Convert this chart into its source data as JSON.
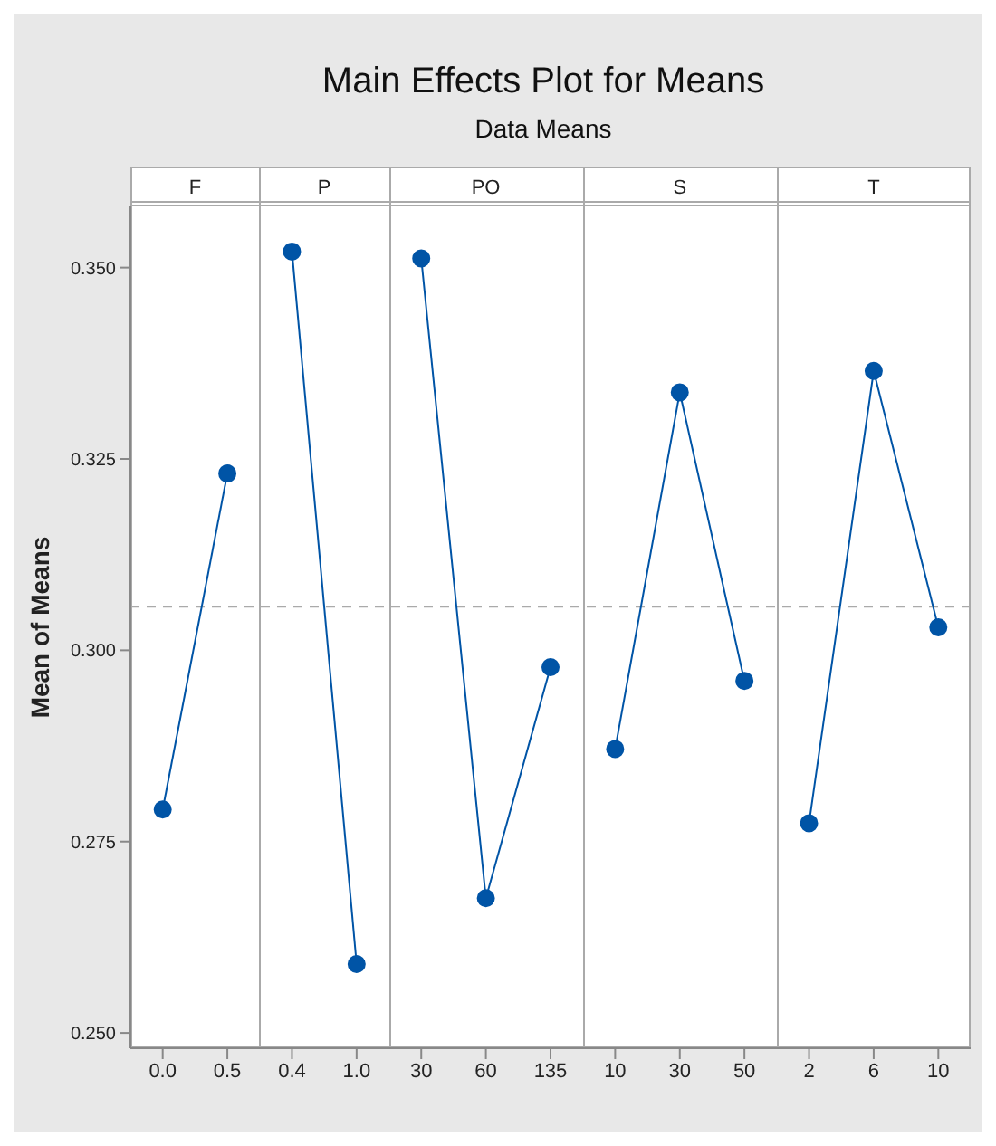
{
  "chart_data": {
    "type": "line",
    "title": "Main Effects Plot for Means",
    "subtitle": "Data Means",
    "ylabel": "Mean of Means",
    "annotations": [
      "F",
      "P",
      "PO",
      "S",
      "T"
    ],
    "categories": [
      "0.0",
      "0.5",
      "0.4",
      "1.0",
      "30",
      "60",
      "135",
      "10",
      "30",
      "50",
      "2",
      "6",
      "10"
    ],
    "series": [
      {
        "color": "#0054a6",
        "values": [
          0.2792,
          0.3231,
          null,
          null,
          null,
          null,
          null,
          null,
          null,
          null,
          null,
          null,
          null
        ]
      },
      {
        "color": "#0054a6",
        "values": [
          null,
          null,
          0.3521,
          0.259,
          null,
          null,
          null,
          null,
          null,
          null,
          null,
          null,
          null
        ]
      },
      {
        "color": "#0054a6",
        "values": [
          null,
          null,
          null,
          null,
          0.3512,
          0.2676,
          0.2978,
          null,
          null,
          null,
          null,
          null,
          null
        ]
      },
      {
        "color": "#0054a6",
        "values": [
          null,
          null,
          null,
          null,
          null,
          null,
          null,
          0.2871,
          0.3337,
          0.296,
          null,
          null,
          null
        ]
      },
      {
        "color": "#0054a6",
        "values": [
          null,
          null,
          null,
          null,
          null,
          null,
          null,
          null,
          null,
          null,
          0.2774,
          0.3365,
          0.303
        ]
      }
    ],
    "ylim": [
      0.248,
      0.358
    ],
    "yticks": [
      {
        "value": 0.25,
        "label": "0.250"
      },
      {
        "value": 0.275,
        "label": "0.275"
      },
      {
        "value": 0.3,
        "label": "0.300"
      },
      {
        "value": 0.325,
        "label": "0.325"
      },
      {
        "value": 0.35,
        "label": "0.350"
      }
    ],
    "ref_lines": [
      {
        "axis": "y",
        "value": 0.3057,
        "color": "#aaaaaa",
        "line_style": "dashed"
      }
    ],
    "marker": "circle",
    "line_style": "solid",
    "grid": false,
    "legend": false
  }
}
